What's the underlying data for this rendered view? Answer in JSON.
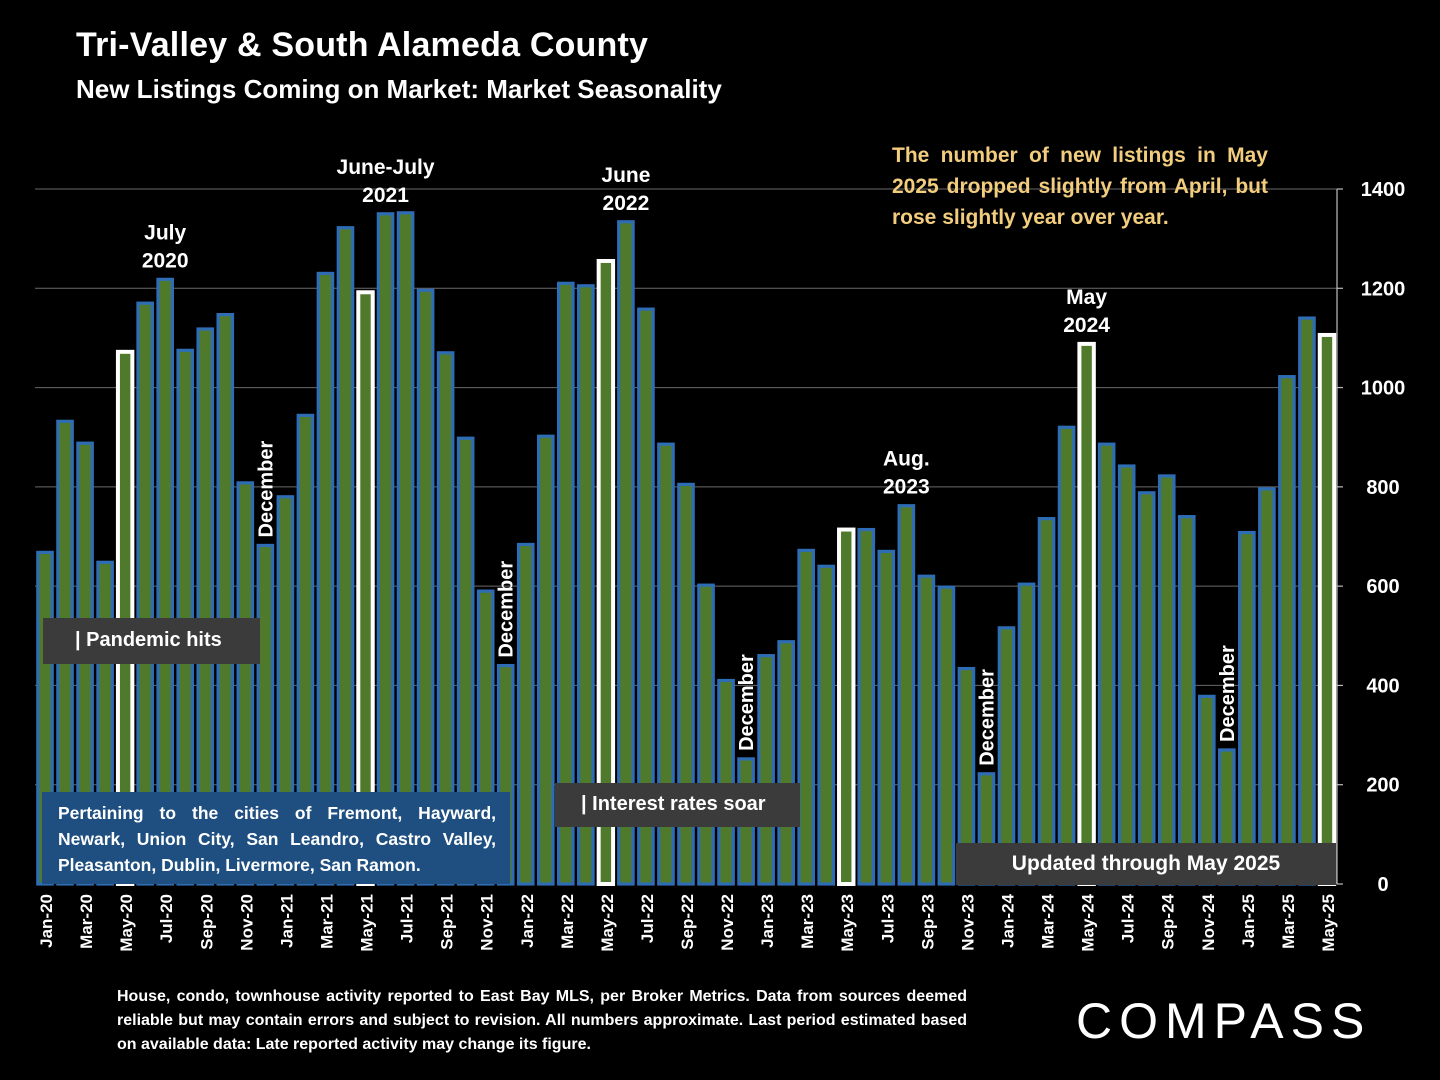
{
  "header": {
    "title": "Tri-Valley & South Alameda County",
    "subtitle": "New Listings Coming on Market: Market Seasonality"
  },
  "note": "The number of new listings in May 2025 dropped slightly from April, but rose slightly year over year.",
  "boxes": {
    "pandemic": "| Pandemic hits",
    "rates": "| Interest rates soar",
    "updated": "Updated through May 2025",
    "cities": "Pertaining to the cities of Fremont, Hayward, Newark, Union City, San Leandro, Castro Valley, Pleasanton, Dublin, Livermore, San Ramon."
  },
  "footnote": "House, condo, townhouse activity reported to East Bay MLS, per Broker Metrics. Data from sources deemed reliable but may contain errors and subject to revision. All numbers approximate. Last period estimated based on available data: Late reported activity may change its figure.",
  "logo": "COMPASS",
  "colors": {
    "background": "#000000",
    "bar_border": "#2e6db4",
    "bar_fill": "#4f7a2b",
    "highlight_border": "#ffffff",
    "note_text": "#f3cd7e",
    "cities_box": "#1e4f80",
    "label_box": "#3b3b3b"
  },
  "chart_data": {
    "type": "bar",
    "ylim": [
      0,
      1400
    ],
    "yticks": [
      0,
      200,
      400,
      600,
      800,
      1000,
      1200,
      1400
    ],
    "y_axis_side": "right",
    "grid": true,
    "x_tick_labels": [
      "Jan-20",
      "Mar-20",
      "May-20",
      "Jul-20",
      "Sep-20",
      "Nov-20",
      "Jan-21",
      "Mar-21",
      "May-21",
      "Jul-21",
      "Sep-21",
      "Nov-21",
      "Jan-22",
      "Mar-22",
      "May-22",
      "Jul-22",
      "Sep-22",
      "Nov-22",
      "Jan-23",
      "Mar-23",
      "May-23",
      "Jul-23",
      "Sep-23",
      "Nov-23",
      "Jan-24",
      "Mar-24",
      "May-24",
      "Jul-24",
      "Sep-24",
      "Nov-24",
      "Jan-25",
      "Mar-25",
      "May-25"
    ],
    "categories": [
      "Jan-20",
      "Feb-20",
      "Mar-20",
      "Apr-20",
      "May-20",
      "Jun-20",
      "Jul-20",
      "Aug-20",
      "Sep-20",
      "Oct-20",
      "Nov-20",
      "Dec-20",
      "Jan-21",
      "Feb-21",
      "Mar-21",
      "Apr-21",
      "May-21",
      "Jun-21",
      "Jul-21",
      "Aug-21",
      "Sep-21",
      "Oct-21",
      "Nov-21",
      "Dec-21",
      "Jan-22",
      "Feb-22",
      "Mar-22",
      "Apr-22",
      "May-22",
      "Jun-22",
      "Jul-22",
      "Aug-22",
      "Sep-22",
      "Oct-22",
      "Nov-22",
      "Dec-22",
      "Jan-23",
      "Feb-23",
      "Mar-23",
      "Apr-23",
      "May-23",
      "Jun-23",
      "Jul-23",
      "Aug-23",
      "Sep-23",
      "Oct-23",
      "Nov-23",
      "Dec-23",
      "Jan-24",
      "Feb-24",
      "Mar-24",
      "Apr-24",
      "May-24",
      "Jun-24",
      "Jul-24",
      "Aug-24",
      "Sep-24",
      "Oct-24",
      "Nov-24",
      "Dec-24",
      "Jan-25",
      "Feb-25",
      "Mar-25",
      "Apr-25",
      "May-25"
    ],
    "values": [
      668,
      932,
      888,
      648,
      1072,
      1170,
      1218,
      1075,
      1118,
      1147,
      808,
      682,
      780,
      944,
      1230,
      1322,
      1192,
      1350,
      1352,
      1196,
      1070,
      898,
      590,
      440,
      684,
      902,
      1210,
      1205,
      1255,
      1334,
      1158,
      886,
      805,
      602,
      410,
      252,
      460,
      488,
      672,
      640,
      714,
      714,
      670,
      762,
      620,
      598,
      434,
      222,
      516,
      604,
      736,
      920,
      1088,
      886,
      842,
      788,
      822,
      740,
      378,
      270,
      708,
      796,
      1022,
      1140,
      1106
    ],
    "highlighted": [
      "May-20",
      "May-21",
      "May-22",
      "May-23",
      "May-24",
      "May-25"
    ],
    "annotations": [
      {
        "label": "July\n2020",
        "category": "Jul-20"
      },
      {
        "label": "June-July\n2021",
        "category": "Jun-21"
      },
      {
        "label": "June\n2022",
        "category": "Jun-22"
      },
      {
        "label": "Aug.\n2023",
        "category": "Aug-23"
      },
      {
        "label": "May\n2024",
        "category": "May-24"
      },
      {
        "label": "December",
        "category": "Dec-20",
        "rotated": true
      },
      {
        "label": "December",
        "category": "Dec-21",
        "rotated": true
      },
      {
        "label": "December",
        "category": "Dec-22",
        "rotated": true
      },
      {
        "label": "December",
        "category": "Dec-23",
        "rotated": true
      },
      {
        "label": "December",
        "category": "Dec-24",
        "rotated": true
      }
    ]
  }
}
